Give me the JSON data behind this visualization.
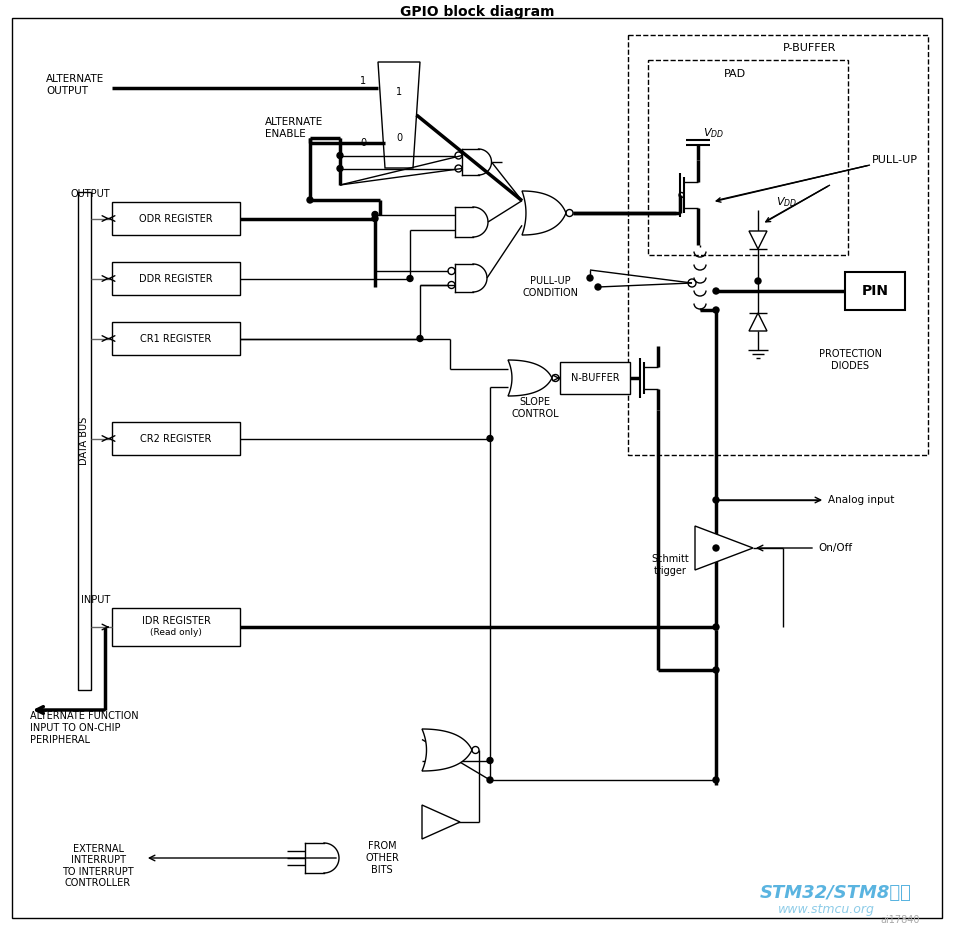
{
  "title": "GPIO block diagram",
  "bg_color": "#ffffff",
  "lw_thick": 2.5,
  "lw_med": 1.5,
  "lw_thin": 1.0,
  "watermark1": "STM32/STM8社区",
  "watermark2": "www.stmcu.org",
  "watermark3": "ai17840",
  "wm_color": "#5ab4e0",
  "wm_color2": "#8ecce8"
}
